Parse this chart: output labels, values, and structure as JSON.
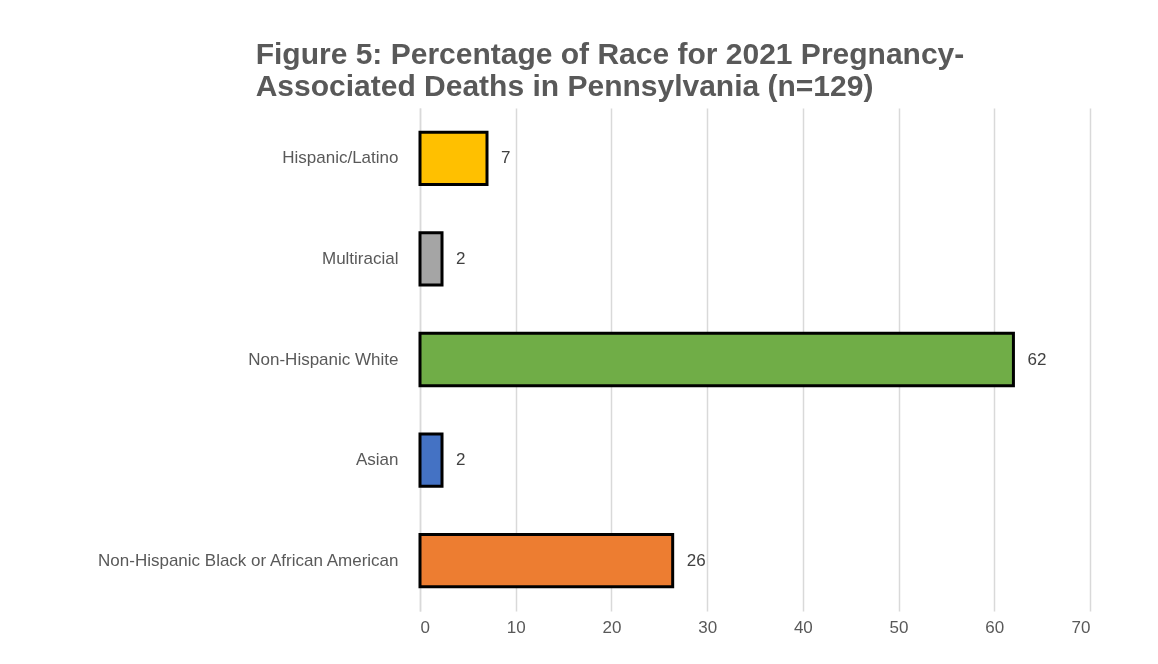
{
  "chart_data": {
    "type": "bar",
    "orientation": "horizontal",
    "title": [
      "Figure 5: Percentage of Race for 2021 Pregnancy-",
      "Associated Deaths in Pennsylvania (n=129)"
    ],
    "categories": [
      "Hispanic/Latino",
      "Multiracial",
      "Non-Hispanic White",
      "Asian",
      "Non-Hispanic Black or African American"
    ],
    "values": [
      7.0,
      2.3,
      62.0,
      2.3,
      26.4
    ],
    "value_labels": [
      "7",
      "2",
      "62",
      "2",
      "26"
    ],
    "colors": [
      "#ffc000",
      "#a5a5a5",
      "#70ad47",
      "#4472c4",
      "#ed7d31"
    ],
    "xlim": [
      0,
      70
    ],
    "xticks": [
      0,
      10,
      20,
      30,
      40,
      50,
      60,
      70
    ],
    "grid": "x"
  }
}
